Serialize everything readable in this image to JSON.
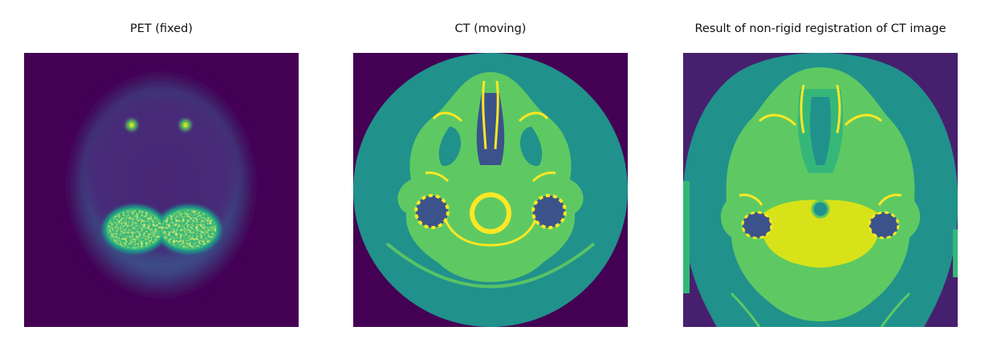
{
  "figure": {
    "panels": [
      {
        "title": "PET (fixed)"
      },
      {
        "title": "CT (moving)"
      },
      {
        "title": "Result of non-rigid registration of CT image"
      }
    ]
  },
  "colors": {
    "background": "#440154",
    "background_result": "#46206e",
    "low": "#3b528b",
    "mid": "#21918c",
    "high": "#5ec962",
    "peak": "#fde725"
  }
}
